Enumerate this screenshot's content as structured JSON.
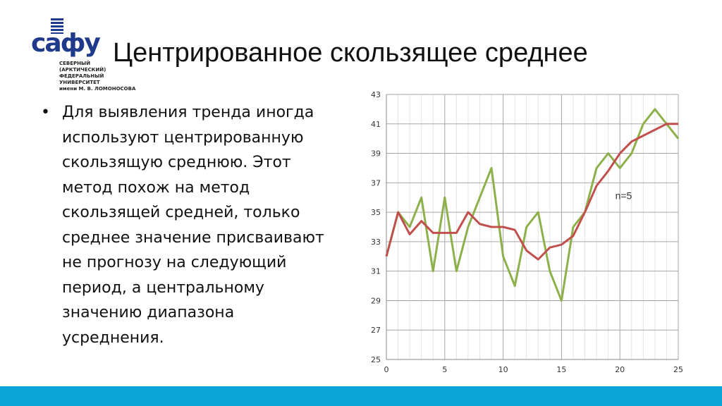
{
  "logo": {
    "mark": "сафу",
    "lines": [
      "СЕВЕРНЫЙ",
      "(АРКТИЧЕСКИЙ)",
      "ФЕДЕРАЛЬНЫЙ",
      "УНИВЕРСИТЕТ",
      "имени М. В. ЛОМОНОСОВА"
    ]
  },
  "slide": {
    "title": "Центрированное скользящее среднее",
    "bullet_lines": [
      "Для выявления тренда иногда",
      "используют центрированную",
      "скользящую среднюю. Этот",
      "метод похож на метод",
      "скользящей средней, только",
      "среднее значение присваивают",
      "не прогнозу на следующий",
      "период, а центральному",
      "значению диапазона",
      "усреднения."
    ]
  },
  "chart_data": {
    "type": "line",
    "annotation": "n=5",
    "xlim": [
      0,
      25
    ],
    "ylim": [
      25,
      43
    ],
    "x_ticks": [
      0,
      5,
      10,
      15,
      20,
      25
    ],
    "y_ticks": [
      25,
      27,
      29,
      31,
      33,
      35,
      37,
      39,
      41,
      43
    ],
    "grid": true,
    "series": [
      {
        "color": "#8db04a",
        "x": [
          0,
          1,
          2,
          3,
          4,
          5,
          6,
          7,
          8,
          9,
          10,
          11,
          12,
          13,
          14,
          15,
          16,
          17,
          18,
          19,
          20,
          21,
          22,
          23,
          24,
          25
        ],
        "y": [
          32,
          35,
          34,
          36,
          31,
          36,
          31,
          34,
          36,
          38,
          32,
          30,
          34,
          35,
          31,
          29,
          34,
          35,
          38,
          39,
          38,
          39,
          41,
          42,
          41,
          40
        ]
      },
      {
        "color": "#c0504d",
        "x": [
          0,
          1,
          2,
          3,
          4,
          5,
          6,
          7,
          8,
          9,
          10,
          11,
          12,
          13,
          14,
          15,
          16,
          17,
          18,
          19,
          20,
          21,
          22,
          23,
          24,
          25
        ],
        "y": [
          32,
          35,
          33.5,
          34.4,
          33.6,
          33.6,
          33.6,
          35,
          34.2,
          34,
          34,
          33.8,
          32.4,
          31.8,
          32.6,
          32.8,
          33.4,
          35,
          36.8,
          37.8,
          39,
          39.8,
          40.2,
          40.6,
          41,
          41
        ]
      }
    ]
  }
}
